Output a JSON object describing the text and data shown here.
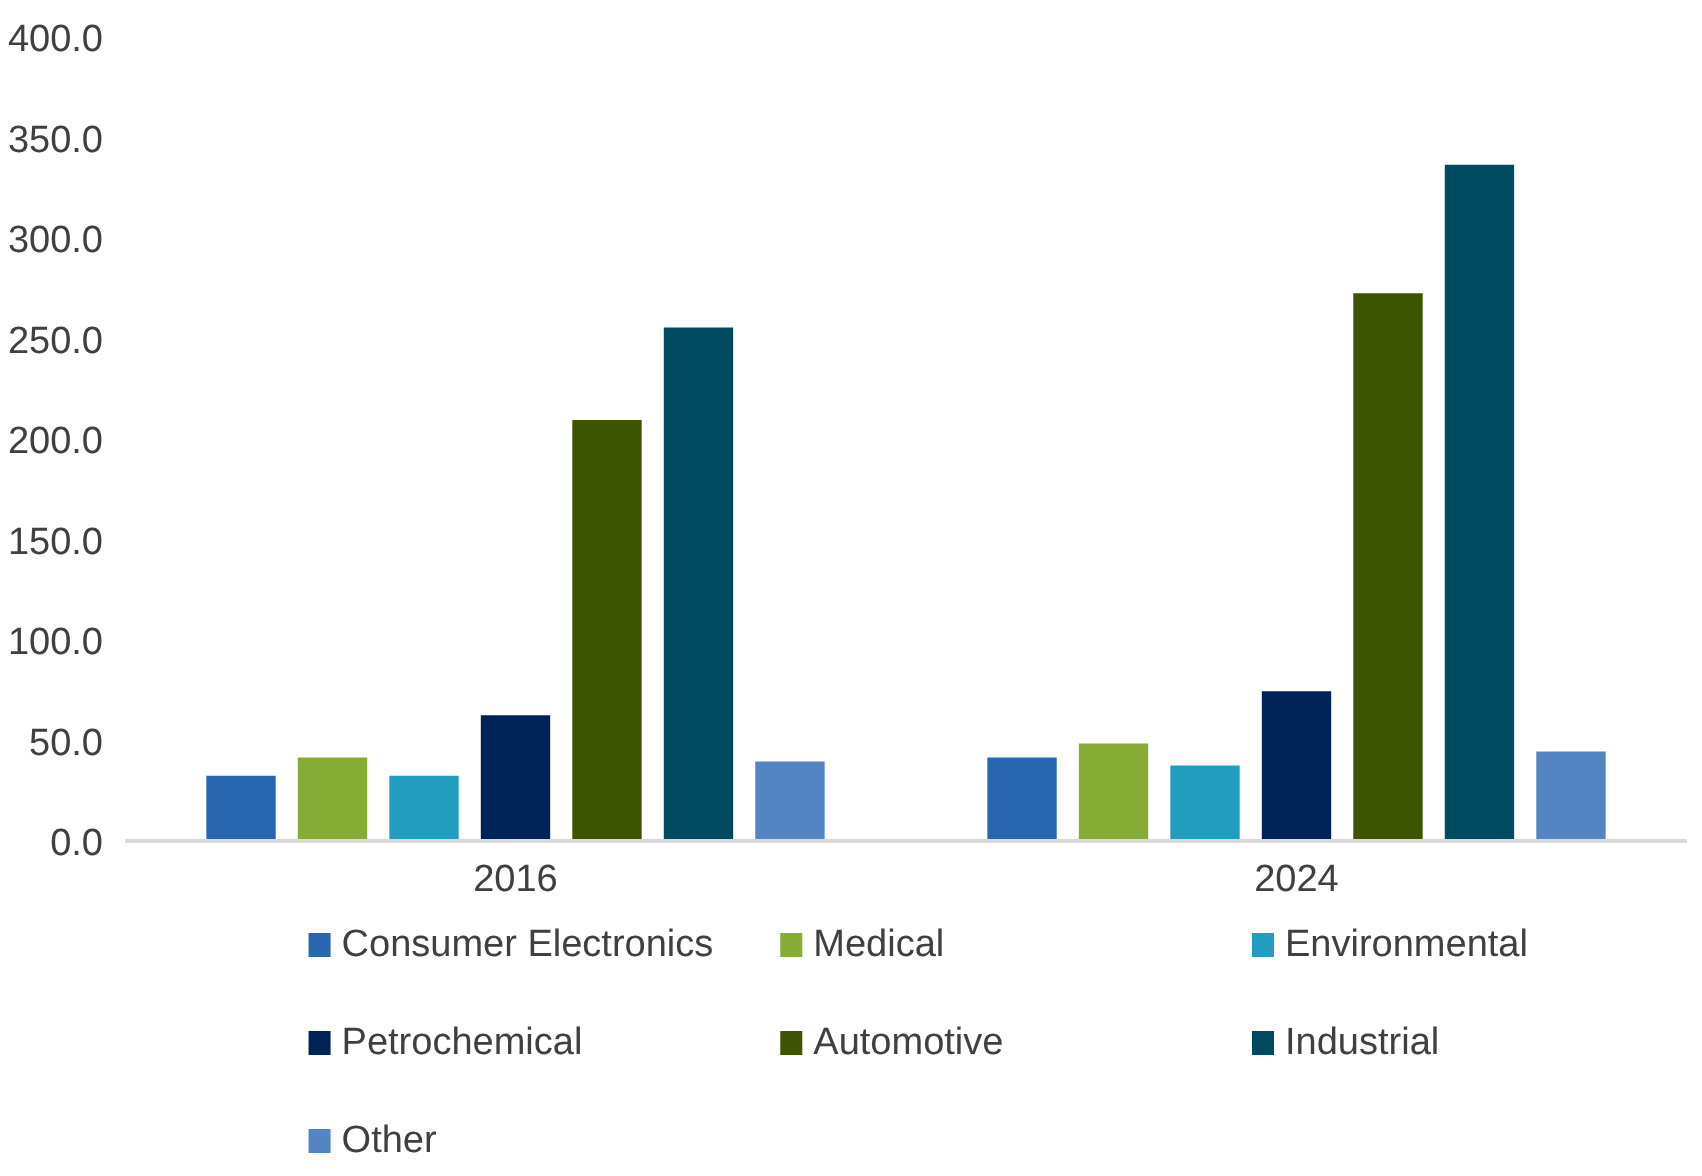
{
  "chart_data": {
    "type": "bar",
    "categories": [
      "2016",
      "2024"
    ],
    "series": [
      {
        "name": "Consumer Electronics",
        "color": "#2866b0",
        "values": [
          33,
          42
        ]
      },
      {
        "name": "Medical",
        "color": "#86ac36",
        "values": [
          42,
          49
        ]
      },
      {
        "name": "Environmental",
        "color": "#229cbf",
        "values": [
          33,
          38
        ]
      },
      {
        "name": "Petrochemical",
        "color": "#002357",
        "values": [
          63,
          75
        ]
      },
      {
        "name": "Automotive",
        "color": "#3d5502",
        "values": [
          210,
          273
        ]
      },
      {
        "name": "Industrial",
        "color": "#004a60",
        "values": [
          256,
          337
        ]
      },
      {
        "name": "Other",
        "color": "#5485c2",
        "values": [
          40,
          45
        ]
      }
    ],
    "ylim": [
      0,
      400
    ],
    "yticks": [
      {
        "value": 0,
        "label": "0.0"
      },
      {
        "value": 50,
        "label": "50.0"
      },
      {
        "value": 100,
        "label": "100.0"
      },
      {
        "value": 150,
        "label": "150.0"
      },
      {
        "value": 200,
        "label": "200.0"
      },
      {
        "value": 250,
        "label": "250.0"
      },
      {
        "value": 300,
        "label": "300.0"
      },
      {
        "value": 350,
        "label": "350.0"
      },
      {
        "value": 400,
        "label": "400.0"
      }
    ],
    "grid": false,
    "legend": "bottom"
  }
}
